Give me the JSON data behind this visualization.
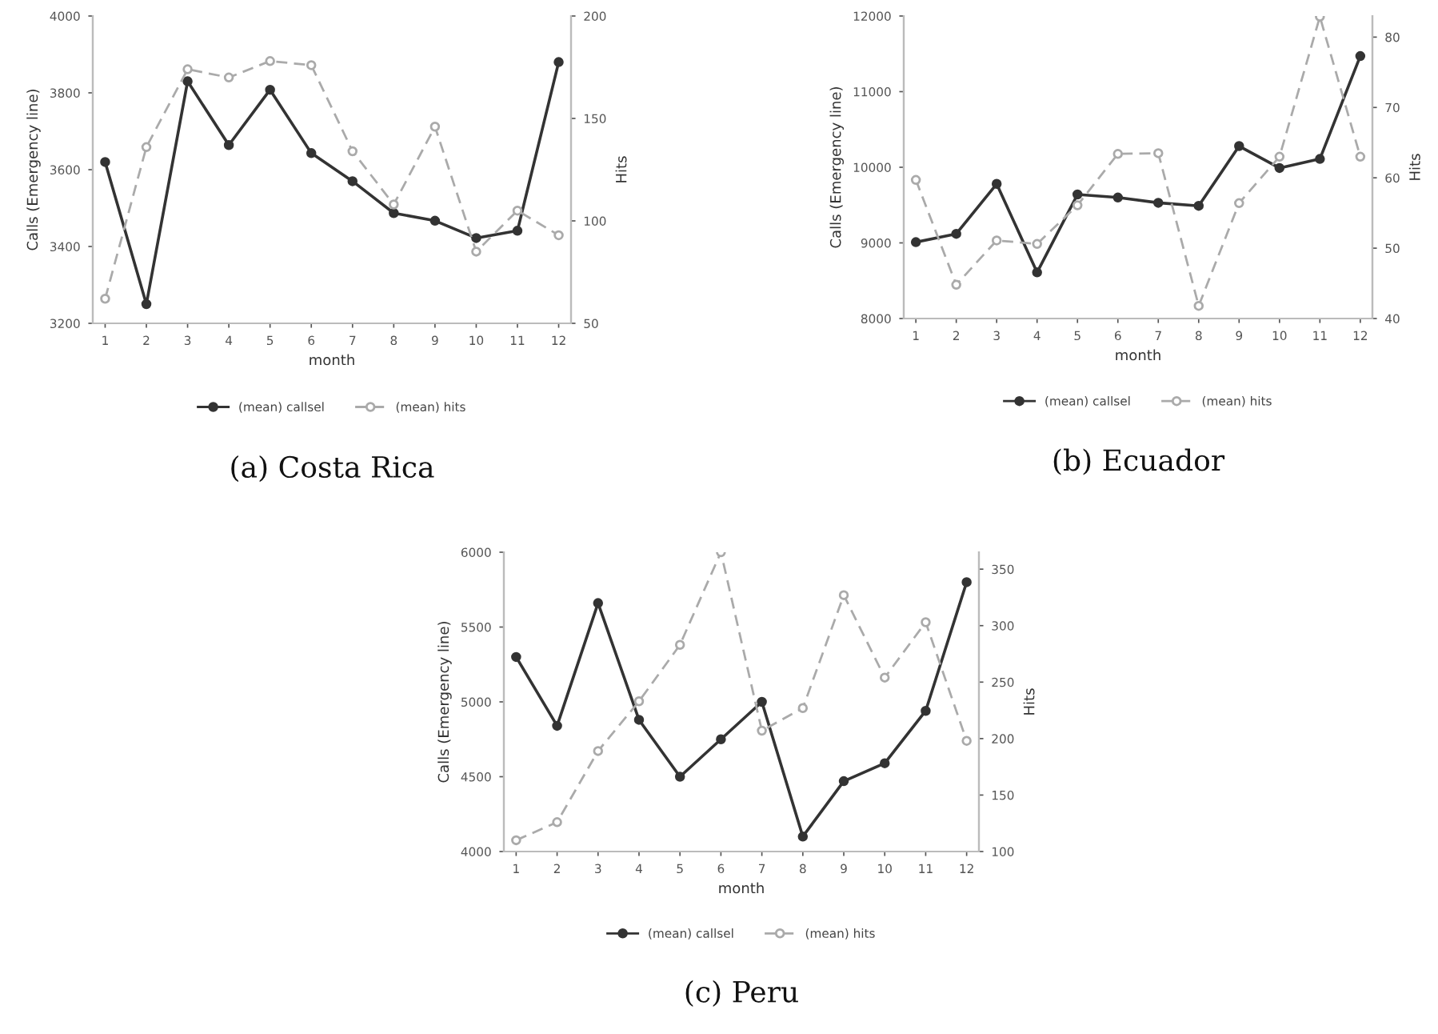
{
  "chart_data": [
    {
      "type": "line",
      "title": "(a) Costa Rica",
      "xlabel": "month",
      "ylabel": "Calls (Emergency line)",
      "y2label": "Hits",
      "x": [
        1,
        2,
        3,
        4,
        5,
        6,
        7,
        8,
        9,
        10,
        11,
        12
      ],
      "xlim": [
        0.7,
        12.3
      ],
      "xticks": [
        1,
        2,
        3,
        4,
        5,
        6,
        7,
        8,
        9,
        10,
        11,
        12
      ],
      "ylim": [
        3200,
        4000
      ],
      "yticks": [
        3200,
        3400,
        3600,
        3800,
        4000
      ],
      "y2lim": [
        50,
        200
      ],
      "y2ticks": [
        50,
        100,
        150,
        200
      ],
      "grid": false,
      "legend": "bottom",
      "marker": "circle",
      "series": [
        {
          "name": "(mean) callsel",
          "color": "#333333",
          "line_style": "solid",
          "values": [
            3620,
            3250,
            3830,
            3664,
            3808,
            3643,
            3570,
            3487,
            3467,
            3422,
            3441,
            3880
          ]
        },
        {
          "name": "(mean) hits",
          "color": "#aaaaaa",
          "line_style": "dashed",
          "axis": "y2",
          "values": [
            62,
            136,
            174,
            170,
            178,
            176,
            134,
            108,
            146,
            85,
            105,
            93
          ]
        }
      ]
    },
    {
      "type": "line",
      "title": "(b) Ecuador",
      "xlabel": "month",
      "ylabel": "Calls (Emergency line)",
      "y2label": "Hits",
      "x": [
        1,
        2,
        3,
        4,
        5,
        6,
        7,
        8,
        9,
        10,
        11,
        12
      ],
      "xlim": [
        0.7,
        12.3
      ],
      "xticks": [
        1,
        2,
        3,
        4,
        5,
        6,
        7,
        8,
        9,
        10,
        11,
        12
      ],
      "ylim": [
        8000,
        12000
      ],
      "yticks": [
        8000,
        9000,
        10000,
        11000,
        12000
      ],
      "y2lim": [
        40,
        83
      ],
      "y2ticks": [
        40,
        50,
        60,
        70,
        80
      ],
      "grid": false,
      "legend": "bottom",
      "marker": "circle",
      "series": [
        {
          "name": "(mean) callsel",
          "color": "#333333",
          "line_style": "solid",
          "values": [
            9010,
            9120,
            9780,
            8610,
            9640,
            9600,
            9530,
            9490,
            10280,
            9990,
            10110,
            11470
          ]
        },
        {
          "name": "(mean) hits",
          "color": "#aaaaaa",
          "line_style": "dashed",
          "axis": "y2",
          "values": [
            59.7,
            44.8,
            51.1,
            50.6,
            56.1,
            63.4,
            63.5,
            41.8,
            56.4,
            63,
            82.9,
            63
          ]
        }
      ]
    },
    {
      "type": "line",
      "title": "(c) Peru",
      "xlabel": "month",
      "ylabel": "Calls (Emergency line)",
      "y2label": "Hits",
      "x": [
        1,
        2,
        3,
        4,
        5,
        6,
        7,
        8,
        9,
        10,
        11,
        12
      ],
      "xlim": [
        0.7,
        12.3
      ],
      "xticks": [
        1,
        2,
        3,
        4,
        5,
        6,
        7,
        8,
        9,
        10,
        11,
        12
      ],
      "ylim": [
        4000,
        6000
      ],
      "yticks": [
        4000,
        4500,
        5000,
        5500,
        6000
      ],
      "y2lim": [
        100,
        365
      ],
      "y2ticks": [
        100,
        150,
        200,
        250,
        300,
        350
      ],
      "grid": false,
      "legend": "bottom",
      "marker": "circle",
      "series": [
        {
          "name": "(mean) callsel",
          "color": "#333333",
          "line_style": "solid",
          "values": [
            5300,
            4840,
            5660,
            4880,
            4500,
            4750,
            5000,
            4100,
            4470,
            4590,
            4940,
            5800
          ]
        },
        {
          "name": "(mean) hits",
          "color": "#aaaaaa",
          "line_style": "dashed",
          "axis": "y2",
          "values": [
            110,
            126,
            189,
            233,
            283,
            365,
            207,
            227,
            327,
            254,
            303,
            198
          ]
        }
      ]
    }
  ]
}
